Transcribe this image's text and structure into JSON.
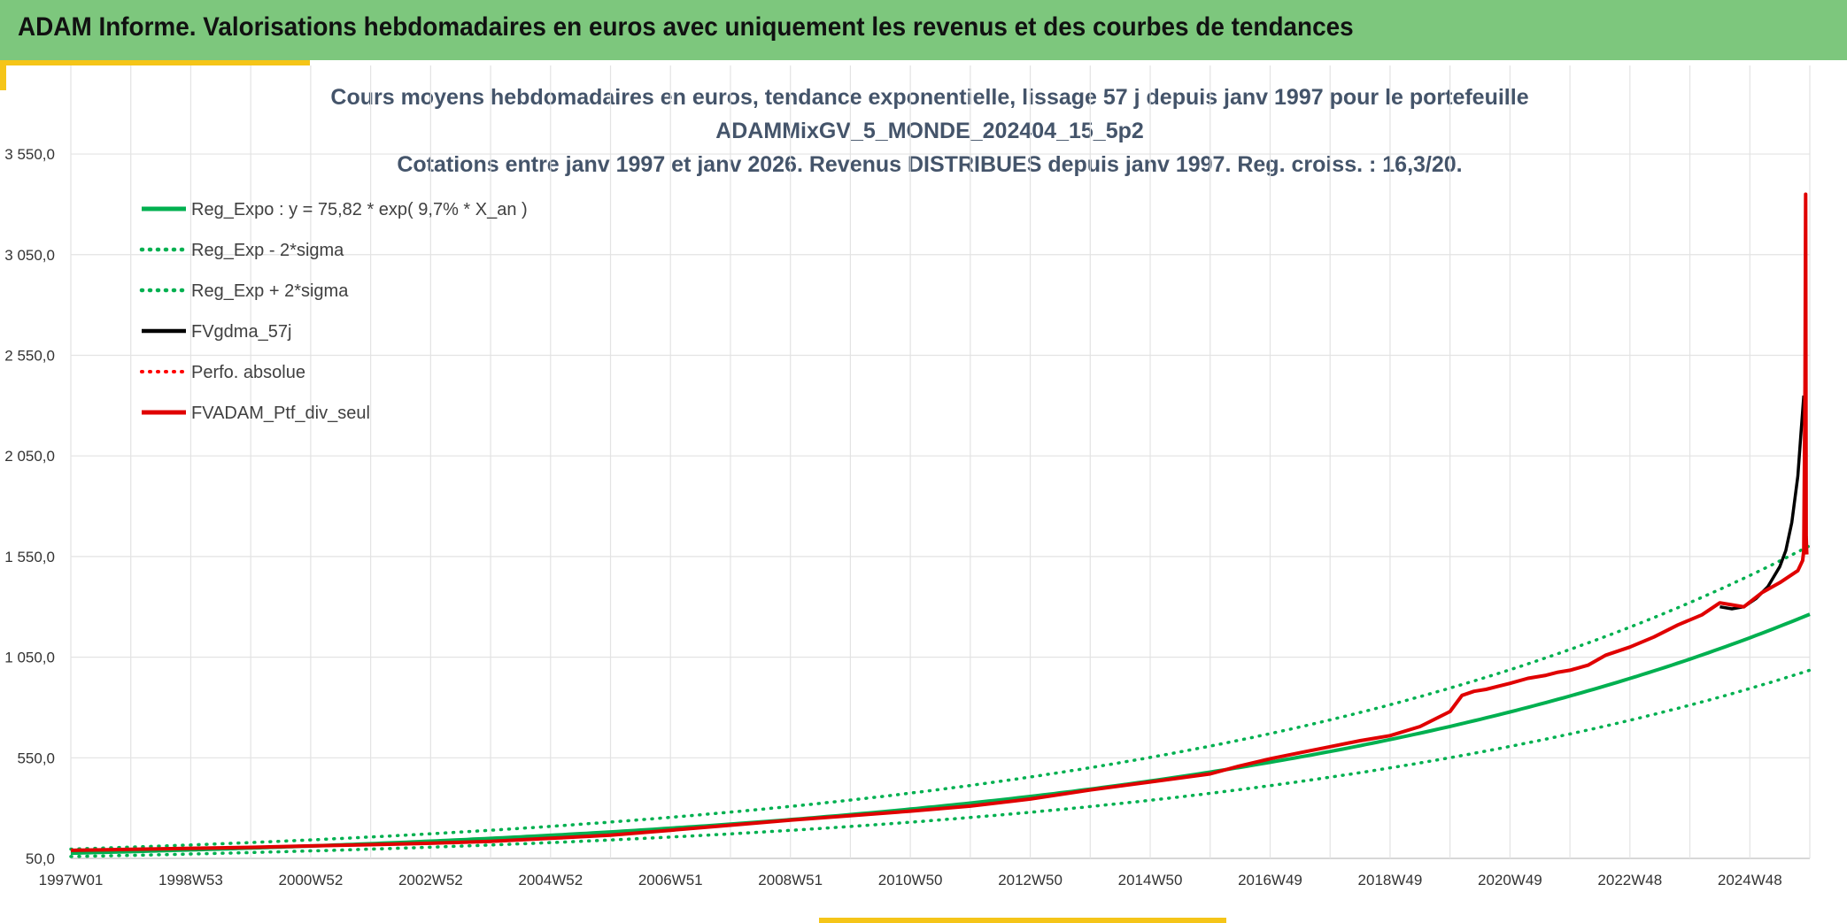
{
  "header": {
    "title": "ADAM Informe. Valorisations hebdomadaires en euros avec uniquement les revenus et des courbes de tendances"
  },
  "chart_data": {
    "type": "line",
    "title_lines": [
      "Cours moyens hebdomadaires en euros, tendance exponentielle, lissage 57 j depuis janv 1997 pour le portefeuille",
      "ADAMMixGV_5_MONDE_202404_15_5p2",
      "Cotations entre janv 1997 et janv 2026. Revenus DISTRIBUES depuis janv 1997. Reg. croiss. : 16,3/20."
    ],
    "y_ticks": [
      "50,0",
      "550,0",
      "1 050,0",
      "1 550,0",
      "2 050,0",
      "2 550,0",
      "3 050,0",
      "3 550,0"
    ],
    "y_tick_values": [
      50,
      550,
      1050,
      1550,
      2050,
      2550,
      3050,
      3550
    ],
    "ylim": [
      50,
      3990
    ],
    "x_ticks": [
      "1997W01",
      "1998W53",
      "2000W52",
      "2002W52",
      "2004W52",
      "2006W51",
      "2008W51",
      "2010W50",
      "2012W50",
      "2014W50",
      "2016W49",
      "2018W49",
      "2020W49",
      "2022W48",
      "2024W48"
    ],
    "x_tick_years": [
      1997.0,
      1999.0,
      2001.0,
      2003.0,
      2005.0,
      2007.0,
      2009.0,
      2011.0,
      2013.0,
      2015.0,
      2017.0,
      2019.0,
      2021.0,
      2023.0,
      2025.0
    ],
    "xlim": [
      1997.0,
      2026.0
    ],
    "grid": true,
    "legend_position": "top-left",
    "regression": {
      "a": 75.82,
      "rate": 0.097,
      "sigma_factor_low": 0.78,
      "sigma_factor_high": 1.27
    },
    "series": [
      {
        "name": "Reg_Expo : y = 75,82 * exp( 9,7% *  X_an )",
        "color": "#00b050",
        "style": "solid",
        "width": 4,
        "kind": "reg"
      },
      {
        "name": "Reg_Exp - 2*sigma",
        "color": "#00b050",
        "style": "dotted",
        "width": 3.5,
        "kind": "reg_low"
      },
      {
        "name": "Reg_Exp + 2*sigma",
        "color": "#00b050",
        "style": "dotted",
        "width": 3.5,
        "kind": "reg_high"
      },
      {
        "name": "FVgdma_57j",
        "color": "#000000",
        "style": "solid",
        "width": 3.5,
        "kind": "points",
        "x": [
          2024.5,
          2024.7,
          2024.9,
          2025.1,
          2025.3,
          2025.5,
          2025.6,
          2025.7,
          2025.8,
          2025.85,
          2025.9
        ],
        "y": [
          1300,
          1290,
          1300,
          1340,
          1400,
          1500,
          1580,
          1720,
          1950,
          2150,
          2350
        ]
      },
      {
        "name": "Perfo. absolue",
        "color": "#ff0000",
        "style": "dotted",
        "width": 3,
        "kind": "none"
      },
      {
        "name": "FVADAM_Ptf_div_seul",
        "color": "#e00000",
        "style": "solid",
        "width": 4,
        "kind": "points",
        "x": [
          1997.0,
          1998.0,
          1999.0,
          2000.0,
          2001.0,
          2002.0,
          2003.0,
          2004.0,
          2005.0,
          2006.0,
          2007.0,
          2008.0,
          2009.0,
          2010.0,
          2011.0,
          2012.0,
          2013.0,
          2014.0,
          2015.0,
          2016.0,
          2016.5,
          2017.0,
          2017.5,
          2018.0,
          2018.5,
          2019.0,
          2019.5,
          2020.0,
          2020.2,
          2020.4,
          2020.6,
          2020.8,
          2021.0,
          2021.3,
          2021.6,
          2021.8,
          2022.0,
          2022.3,
          2022.6,
          2023.0,
          2023.4,
          2023.8,
          2024.2,
          2024.5,
          2024.7,
          2024.9,
          2025.2,
          2025.5,
          2025.8,
          2025.88,
          2025.9,
          2025.92,
          2025.93,
          2025.94,
          2025.95
        ],
        "y": [
          90,
          95,
          100,
          105,
          112,
          118,
          125,
          135,
          150,
          165,
          190,
          215,
          240,
          262,
          285,
          310,
          345,
          390,
          430,
          470,
          510,
          545,
          575,
          605,
          635,
          660,
          705,
          780,
          860,
          880,
          890,
          905,
          920,
          945,
          960,
          975,
          985,
          1010,
          1060,
          1100,
          1150,
          1210,
          1260,
          1320,
          1310,
          1300,
          1370,
          1420,
          1480,
          1530,
          1580,
          2400,
          3350,
          1650,
          1560
        ]
      }
    ]
  }
}
